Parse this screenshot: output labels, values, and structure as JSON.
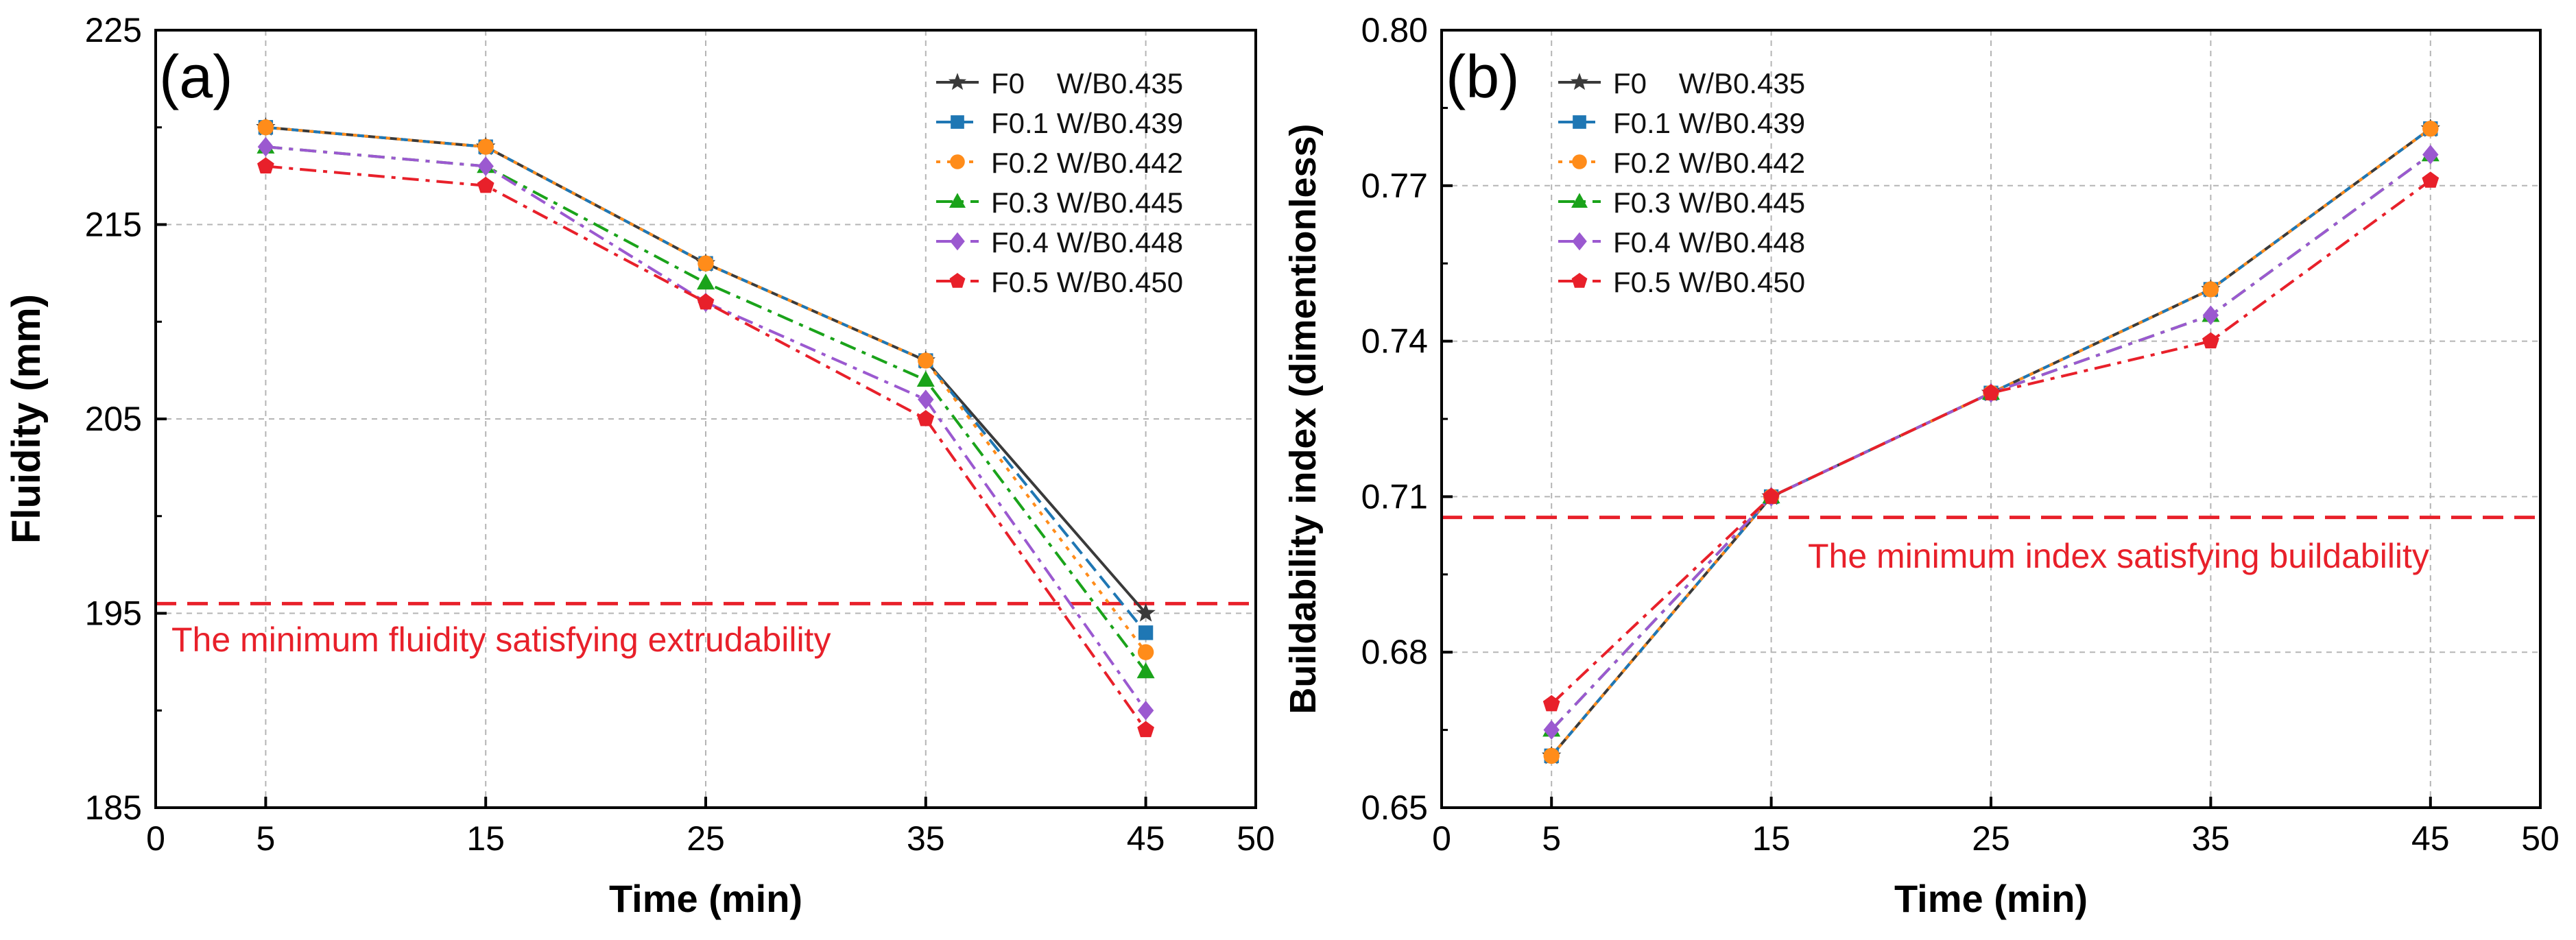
{
  "chart_data": [
    {
      "type": "line",
      "panel_label": "(a)",
      "xlabel": "Time (min)",
      "ylabel": "Fluidity (mm)",
      "xlim": [
        0,
        50
      ],
      "ylim": [
        185,
        225
      ],
      "xticks": [
        0,
        5,
        15,
        25,
        35,
        45,
        50
      ],
      "xtick_labels": [
        "0",
        "5",
        "15",
        "25",
        "35",
        "45",
        "50"
      ],
      "yticks": [
        185,
        195,
        205,
        215,
        225
      ],
      "ytick_labels": [
        "185",
        "195",
        "205",
        "215",
        "225"
      ],
      "grid": true,
      "legend_position": "top-right",
      "x": [
        5,
        15,
        25,
        35,
        45
      ],
      "series": [
        {
          "name": "F0    W/B0.435",
          "color": "#3a3a3a",
          "marker": "star",
          "dash": "solid",
          "values": [
            220,
            219,
            213,
            208,
            195
          ]
        },
        {
          "name": "F0.1 W/B0.439",
          "color": "#1f77b4",
          "marker": "square",
          "dash": "dashed",
          "values": [
            220,
            219,
            213,
            208,
            194
          ]
        },
        {
          "name": "F0.2 W/B0.442",
          "color": "#ff8c1a",
          "marker": "circle",
          "dash": "dotted",
          "values": [
            220,
            219,
            213,
            208,
            193
          ]
        },
        {
          "name": "F0.3 W/B0.445",
          "color": "#1aa31a",
          "marker": "triangle",
          "dash": "dashdot",
          "values": [
            219,
            218,
            212,
            207,
            192
          ]
        },
        {
          "name": "F0.4 W/B0.448",
          "color": "#9b59d0",
          "marker": "diamond",
          "dash": "dashdot",
          "values": [
            219,
            218,
            211,
            206,
            190
          ]
        },
        {
          "name": "F0.5 W/B0.450",
          "color": "#e8202a",
          "marker": "pentagon",
          "dash": "dashdot",
          "values": [
            218,
            217,
            211,
            205,
            189
          ]
        }
      ],
      "threshold": {
        "value": 195.5,
        "color": "#e8202a",
        "label": "The minimum fluidity satisfying extrudability"
      }
    },
    {
      "type": "line",
      "panel_label": "(b)",
      "xlabel": "Time (min)",
      "ylabel": "Buildability index (dimentionless)",
      "xlim": [
        0,
        50
      ],
      "ylim": [
        0.65,
        0.8
      ],
      "xticks": [
        0,
        5,
        15,
        25,
        35,
        45,
        50
      ],
      "xtick_labels": [
        "0",
        "5",
        "15",
        "25",
        "35",
        "45",
        "50"
      ],
      "yticks": [
        0.65,
        0.68,
        0.71,
        0.74,
        0.77,
        0.8
      ],
      "ytick_labels": [
        "0.65",
        "0.68",
        "0.71",
        "0.74",
        "0.77",
        "0.80"
      ],
      "grid": true,
      "legend_position": "top-left",
      "x": [
        5,
        15,
        25,
        35,
        45
      ],
      "series": [
        {
          "name": "F0    W/B0.435",
          "color": "#3a3a3a",
          "marker": "star",
          "dash": "solid",
          "values": [
            0.66,
            0.71,
            0.73,
            0.75,
            0.781
          ]
        },
        {
          "name": "F0.1 W/B0.439",
          "color": "#1f77b4",
          "marker": "square",
          "dash": "dashed",
          "values": [
            0.66,
            0.71,
            0.73,
            0.75,
            0.781
          ]
        },
        {
          "name": "F0.2 W/B0.442",
          "color": "#ff8c1a",
          "marker": "circle",
          "dash": "dotted",
          "values": [
            0.66,
            0.71,
            0.73,
            0.75,
            0.781
          ]
        },
        {
          "name": "F0.3 W/B0.445",
          "color": "#1aa31a",
          "marker": "triangle",
          "dash": "dashdot",
          "values": [
            0.665,
            0.71,
            0.73,
            0.745,
            0.776
          ]
        },
        {
          "name": "F0.4 W/B0.448",
          "color": "#9b59d0",
          "marker": "diamond",
          "dash": "dashdot",
          "values": [
            0.665,
            0.71,
            0.73,
            0.745,
            0.776
          ]
        },
        {
          "name": "F0.5 W/B0.450",
          "color": "#e8202a",
          "marker": "pentagon",
          "dash": "dashdot",
          "values": [
            0.67,
            0.71,
            0.73,
            0.74,
            0.771
          ]
        }
      ],
      "threshold": {
        "value": 0.706,
        "color": "#e8202a",
        "label": "The minimum index satisfying buildability"
      }
    }
  ]
}
